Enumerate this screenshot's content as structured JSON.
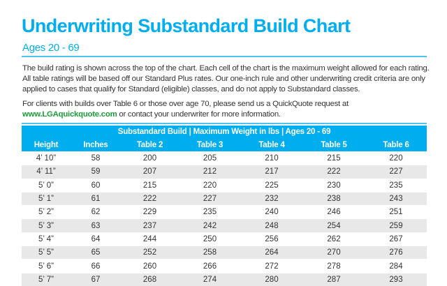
{
  "title": "Underwriting Substandard Build Chart",
  "subtitle": "Ages 20 - 69",
  "intro": "The build rating is shown across the top of the chart. Each cell of the chart is the maximum weight allowed for each rating. All table ratings will be based off our Standard Plus rates. Our one-inch rule and other underwriting credit criteria are only applied to cases that qualify for Standard (eligible) classes, and do not apply to Substandard classes.",
  "contact": {
    "before": "For clients with builds over Table 6 or those over age 70, please send us a QuickQuote request at",
    "link": "www.LGAquickquote.com",
    "after": " or contact your underwriter for more information."
  },
  "colors": {
    "accent": "#00aeef",
    "link": "#1a9c3a",
    "alt_row": "#e8e8e9"
  },
  "table": {
    "caption": "Substandard Build |  Maximum Weight in lbs |  Ages 20 - 69",
    "headers": [
      "Height",
      "Inches",
      "Table 2",
      "Table 3",
      "Table 4",
      "Table 5",
      "Table 6"
    ],
    "rows": [
      [
        "4’ 10”",
        "58",
        "200",
        "205",
        "210",
        "215",
        "220"
      ],
      [
        "4’ 11”",
        "59",
        "207",
        "212",
        "217",
        "222",
        "227"
      ],
      [
        "5’ 0”",
        "60",
        "215",
        "220",
        "225",
        "230",
        "235"
      ],
      [
        "5’ 1”",
        "61",
        "222",
        "227",
        "232",
        "238",
        "243"
      ],
      [
        "5’ 2”",
        "62",
        "229",
        "235",
        "240",
        "246",
        "251"
      ],
      [
        "5’ 3”",
        "63",
        "237",
        "242",
        "248",
        "254",
        "259"
      ],
      [
        "5’ 4”",
        "64",
        "244",
        "250",
        "256",
        "262",
        "267"
      ],
      [
        "5’ 5”",
        "65",
        "252",
        "258",
        "264",
        "270",
        "276"
      ],
      [
        "5’ 6”",
        "66",
        "260",
        "266",
        "272",
        "278",
        "284"
      ],
      [
        "5’ 7”",
        "67",
        "268",
        "274",
        "280",
        "287",
        "293"
      ]
    ]
  }
}
